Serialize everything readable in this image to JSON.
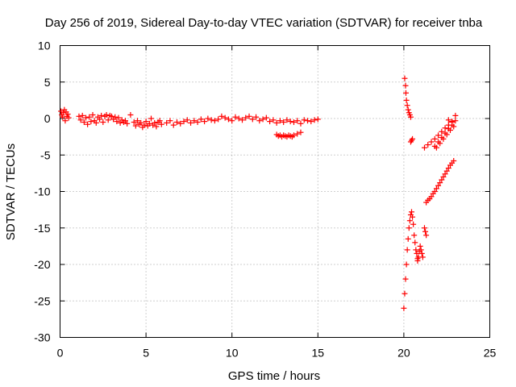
{
  "chart_data": {
    "type": "scatter",
    "title": "Day 256 of 2019, Sidereal Day-to-day VTEC variation (SDTVAR) for receiver tnba",
    "xlabel": "GPS time / hours",
    "ylabel": "SDTVAR / TECUs",
    "xlim": [
      0,
      25
    ],
    "ylim": [
      -30,
      10
    ],
    "xticks": [
      0,
      5,
      10,
      15,
      20,
      25
    ],
    "xtick_labels": [
      "0",
      "5",
      "10",
      "15",
      "20",
      "25"
    ],
    "yticks": [
      10,
      5,
      0,
      -5,
      -10,
      -15,
      -20,
      -25,
      -30
    ],
    "ytick_labels": [
      "10",
      "5",
      "0",
      "-5",
      "-10",
      "-15",
      "-20",
      "-25",
      "-30"
    ],
    "grid": true,
    "marker": "+",
    "color": "#ff0000",
    "series": [
      {
        "name": "SDTVAR",
        "x": [
          0.05,
          0.1,
          0.15,
          0.2,
          0.25,
          0.3,
          0.35,
          0.4,
          0.45,
          0.5,
          1.1,
          1.2,
          1.3,
          1.4,
          1.5,
          1.6,
          1.7,
          1.8,
          1.9,
          2.0,
          2.1,
          2.2,
          2.3,
          2.4,
          2.5,
          2.6,
          2.7,
          2.8,
          2.9,
          3.0,
          3.1,
          3.2,
          3.3,
          3.4,
          3.5,
          3.6,
          3.7,
          3.8,
          3.9,
          4.1,
          4.3,
          4.4,
          4.5,
          4.6,
          4.7,
          4.8,
          4.9,
          5.0,
          5.1,
          5.2,
          5.3,
          5.4,
          5.5,
          5.6,
          5.7,
          5.8,
          5.9,
          6.2,
          6.4,
          6.6,
          6.8,
          7.0,
          7.2,
          7.4,
          7.6,
          7.8,
          8.0,
          8.2,
          8.4,
          8.6,
          8.8,
          9.0,
          9.2,
          9.4,
          9.6,
          9.8,
          10.0,
          10.2,
          10.4,
          10.6,
          10.8,
          11.0,
          11.2,
          11.4,
          11.6,
          11.8,
          12.0,
          12.2,
          12.4,
          12.6,
          12.8,
          13.0,
          13.2,
          13.4,
          13.6,
          13.8,
          14.0,
          14.2,
          14.4,
          14.6,
          14.8,
          15.0,
          12.6,
          12.7,
          12.8,
          12.9,
          13.0,
          13.1,
          13.2,
          13.3,
          13.4,
          13.5,
          13.6,
          13.8,
          14.0,
          20.05,
          20.1,
          20.12,
          20.15,
          20.2,
          20.25,
          20.3,
          20.35,
          20.4,
          20.4,
          20.45,
          20.5,
          20.0,
          20.05,
          20.1,
          20.15,
          20.2,
          20.25,
          20.3,
          20.35,
          20.4,
          20.45,
          20.5,
          20.55,
          20.6,
          20.65,
          20.7,
          20.75,
          20.8,
          20.8,
          20.85,
          20.9,
          20.95,
          21.0,
          21.05,
          21.1,
          21.2,
          21.25,
          21.3,
          21.3,
          21.4,
          21.5,
          21.6,
          21.7,
          21.8,
          21.9,
          22.0,
          22.1,
          22.2,
          22.3,
          22.4,
          22.5,
          22.6,
          22.7,
          22.8,
          22.9,
          21.2,
          21.4,
          21.6,
          21.8,
          22.0,
          22.2,
          22.4,
          22.6,
          22.8,
          23.0,
          21.8,
          22.0,
          22.2,
          22.4,
          22.6,
          22.8,
          21.9,
          22.1,
          22.3,
          22.5,
          22.7,
          22.9,
          22.6,
          22.8,
          23.0
        ],
        "y": [
          1.0,
          0.5,
          0.2,
          0.8,
          1.2,
          -0.3,
          0.9,
          0.3,
          0.6,
          0.1,
          0.3,
          -0.2,
          0.4,
          -0.5,
          0.1,
          -0.8,
          0.2,
          -0.4,
          0.5,
          -0.3,
          -0.6,
          0.2,
          -0.1,
          0.4,
          -0.5,
          0.3,
          0.5,
          -0.2,
          0.4,
          0.3,
          -0.1,
          0.2,
          -0.4,
          0.1,
          -0.6,
          -0.2,
          -0.5,
          -0.3,
          -0.7,
          0.5,
          -0.5,
          -1.0,
          -0.3,
          -0.8,
          -0.6,
          -1.2,
          -0.9,
          -0.4,
          -1.0,
          -0.7,
          0.0,
          -0.9,
          -0.6,
          -1.1,
          -0.5,
          -0.3,
          -0.8,
          -0.6,
          -0.3,
          -0.9,
          -0.5,
          -0.7,
          -0.4,
          -0.2,
          -0.6,
          -0.3,
          -0.5,
          -0.1,
          -0.4,
          0.0,
          -0.2,
          -0.3,
          -0.1,
          0.3,
          0.1,
          -0.1,
          -0.3,
          0.2,
          0.0,
          -0.2,
          0.1,
          0.3,
          -0.1,
          0.2,
          -0.3,
          -0.1,
          0.1,
          -0.4,
          -0.2,
          -0.6,
          -0.3,
          -0.5,
          -0.2,
          -0.4,
          -0.5,
          -0.3,
          -0.7,
          -0.2,
          -0.3,
          -0.4,
          -0.2,
          -0.1,
          -2.2,
          -2.4,
          -2.3,
          -2.5,
          -2.3,
          -2.4,
          -2.5,
          -2.3,
          -2.4,
          -2.5,
          -2.3,
          -2.1,
          -1.9,
          5.5,
          4.5,
          3.5,
          2.5,
          1.8,
          1.2,
          0.8,
          0.5,
          0.2,
          -3.2,
          -3.0,
          -2.8,
          -26.0,
          -24.0,
          -22.0,
          -20.0,
          -18.0,
          -16.5,
          -15.0,
          -14.0,
          -13.2,
          -12.8,
          -13.5,
          -14.5,
          -16.0,
          -17.0,
          -18.0,
          -18.5,
          -19.2,
          -19.5,
          -19.0,
          -18.2,
          -17.5,
          -18.0,
          -18.5,
          -19.0,
          -15.0,
          -15.5,
          -16.0,
          -11.5,
          -11.2,
          -11.0,
          -10.7,
          -10.3,
          -10.0,
          -9.6,
          -9.2,
          -8.8,
          -8.4,
          -8.0,
          -7.6,
          -7.2,
          -6.8,
          -6.4,
          -6.1,
          -5.8,
          -4.0,
          -3.6,
          -3.2,
          -2.8,
          -2.3,
          -1.8,
          -1.3,
          -0.9,
          -0.4,
          0.4,
          -3.8,
          -3.2,
          -2.6,
          -2.0,
          -1.4,
          -0.9,
          -4.0,
          -3.4,
          -2.8,
          -2.2,
          -1.6,
          -1.1,
          -0.2,
          -0.5,
          -0.3
        ]
      }
    ]
  }
}
